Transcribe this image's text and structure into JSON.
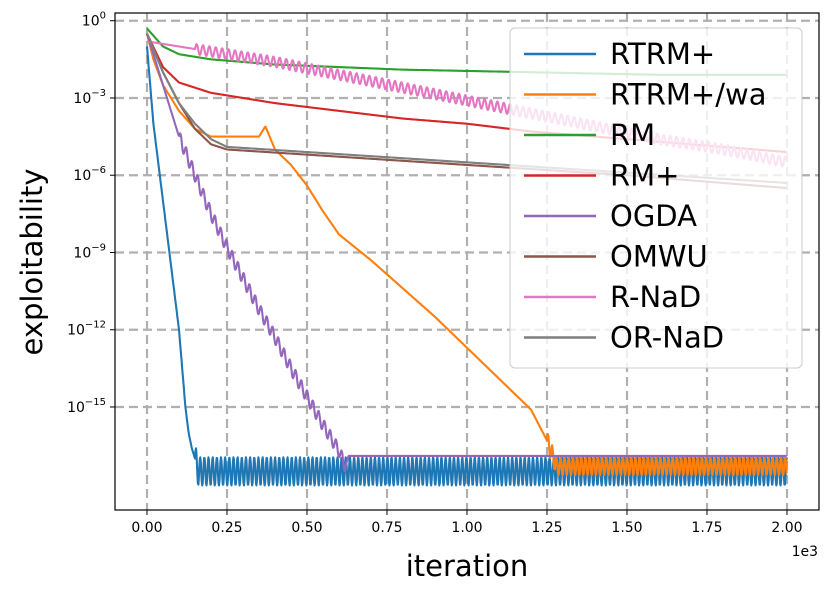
{
  "chart_data": {
    "type": "line",
    "title": "",
    "xlabel": "iteration",
    "ylabel": "exploitability",
    "x_offset_text": "1e3",
    "xlim": [
      -0.1,
      2.1
    ],
    "ylim_log10": [
      -19.0,
      0.3
    ],
    "xticks": [
      {
        "value": 0.0,
        "label": "0.00"
      },
      {
        "value": 0.25,
        "label": "0.25"
      },
      {
        "value": 0.5,
        "label": "0.50"
      },
      {
        "value": 0.75,
        "label": "0.75"
      },
      {
        "value": 1.0,
        "label": "1.00"
      },
      {
        "value": 1.25,
        "label": "1.25"
      },
      {
        "value": 1.5,
        "label": "1.50"
      },
      {
        "value": 1.75,
        "label": "1.75"
      },
      {
        "value": 2.0,
        "label": "2.00"
      }
    ],
    "yticks": [
      {
        "value": 0,
        "base": "10",
        "exp": "0"
      },
      {
        "value": -3,
        "base": "10",
        "exp": "−3"
      },
      {
        "value": -6,
        "base": "10",
        "exp": "−6"
      },
      {
        "value": -9,
        "base": "10",
        "exp": "−9"
      },
      {
        "value": -12,
        "base": "10",
        "exp": "−12"
      },
      {
        "value": -15,
        "base": "10",
        "exp": "−15"
      }
    ],
    "grid": true,
    "legend_position": "top-right",
    "series": [
      {
        "name": "RTRM+",
        "color": "#1f77b4",
        "x": [
          0,
          0.01,
          0.02,
          0.04,
          0.06,
          0.08,
          0.1,
          0.11,
          0.12,
          0.13,
          0.14,
          0.15,
          0.16,
          2.0
        ],
        "y_log10": [
          -1.0,
          -2.5,
          -4.0,
          -6.0,
          -8.0,
          -10.0,
          -12.0,
          -13.5,
          -15.0,
          -16.0,
          -16.6,
          -17.0,
          -17.5,
          -17.5
        ],
        "oscillation": {
          "start": 0.15,
          "amplitude": 0.55,
          "period": 0.013
        }
      },
      {
        "name": "RTRM+/wa",
        "color": "#ff7f0e",
        "x": [
          0,
          0.02,
          0.05,
          0.1,
          0.15,
          0.2,
          0.35,
          0.37,
          0.4,
          0.45,
          0.5,
          0.55,
          0.6,
          0.7,
          0.8,
          0.9,
          1.0,
          1.1,
          1.2,
          1.25,
          1.28,
          2.0
        ],
        "y_log10": [
          -0.5,
          -1.5,
          -2.5,
          -3.5,
          -4.2,
          -4.5,
          -4.5,
          -4.1,
          -5.0,
          -5.6,
          -6.4,
          -7.4,
          -8.3,
          -9.3,
          -10.4,
          -11.5,
          -12.7,
          -13.9,
          -15.1,
          -16.3,
          -17.3,
          -17.3
        ],
        "oscillation": {
          "start": 1.25,
          "amplitude": 0.35,
          "period": 0.013
        }
      },
      {
        "name": "RM",
        "color": "#2ca02c",
        "x": [
          0,
          0.05,
          0.1,
          0.2,
          0.4,
          0.6,
          0.8,
          1.0,
          1.2,
          1.4,
          1.6,
          1.8,
          2.0
        ],
        "y_log10": [
          -0.3,
          -1.0,
          -1.3,
          -1.5,
          -1.7,
          -1.8,
          -1.9,
          -1.95,
          -2.0,
          -2.05,
          -2.1,
          -2.1,
          -2.1
        ]
      },
      {
        "name": "RM+",
        "color": "#d62728",
        "x": [
          0,
          0.05,
          0.1,
          0.2,
          0.4,
          0.6,
          0.8,
          1.0,
          1.2,
          1.4,
          1.6,
          1.8,
          2.0
        ],
        "y_log10": [
          -0.5,
          -1.8,
          -2.4,
          -2.8,
          -3.2,
          -3.5,
          -3.8,
          -4.0,
          -4.3,
          -4.5,
          -4.7,
          -4.9,
          -5.1
        ]
      },
      {
        "name": "OGDA",
        "color": "#9467bd",
        "x": [
          0,
          0.05,
          0.1,
          0.15,
          0.2,
          0.25,
          0.3,
          0.35,
          0.4,
          0.45,
          0.5,
          0.55,
          0.6,
          0.62,
          0.63,
          2.0
        ],
        "y_log10": [
          -0.5,
          -2.5,
          -4.5,
          -6.0,
          -7.5,
          -8.8,
          -10.0,
          -11.2,
          -12.3,
          -13.5,
          -14.6,
          -15.7,
          -16.7,
          -17.3,
          -16.9,
          -16.9
        ],
        "oscillation": {
          "start": 0.1,
          "end": 0.62,
          "amplitude": 0.25,
          "period": 0.018
        }
      },
      {
        "name": "OMWU",
        "color": "#8c564b",
        "x": [
          0,
          0.05,
          0.1,
          0.15,
          0.2,
          0.25,
          0.5,
          1.0,
          1.5,
          2.0
        ],
        "y_log10": [
          -0.5,
          -2.0,
          -3.2,
          -4.2,
          -4.8,
          -5.0,
          -5.2,
          -5.6,
          -6.0,
          -6.5
        ]
      },
      {
        "name": "R-NaD",
        "color": "#e377c2",
        "x": [
          0,
          0.2,
          0.4,
          0.6,
          0.8,
          1.0,
          1.2,
          1.4,
          1.6,
          1.8,
          2.0
        ],
        "y_log10": [
          -0.8,
          -1.2,
          -1.6,
          -2.1,
          -2.6,
          -3.1,
          -3.6,
          -4.1,
          -4.6,
          -5.0,
          -5.5
        ],
        "oscillation": {
          "start": 0.15,
          "end": 2.0,
          "amplitude": 0.2,
          "period": 0.02
        }
      },
      {
        "name": "OR-NaD",
        "color": "#7f7f7f",
        "x": [
          0,
          0.05,
          0.1,
          0.15,
          0.2,
          0.25,
          0.5,
          1.0,
          1.5,
          2.0
        ],
        "y_log10": [
          -0.5,
          -2.0,
          -3.2,
          -4.0,
          -4.6,
          -4.9,
          -5.1,
          -5.5,
          -5.9,
          -6.3
        ]
      }
    ]
  }
}
